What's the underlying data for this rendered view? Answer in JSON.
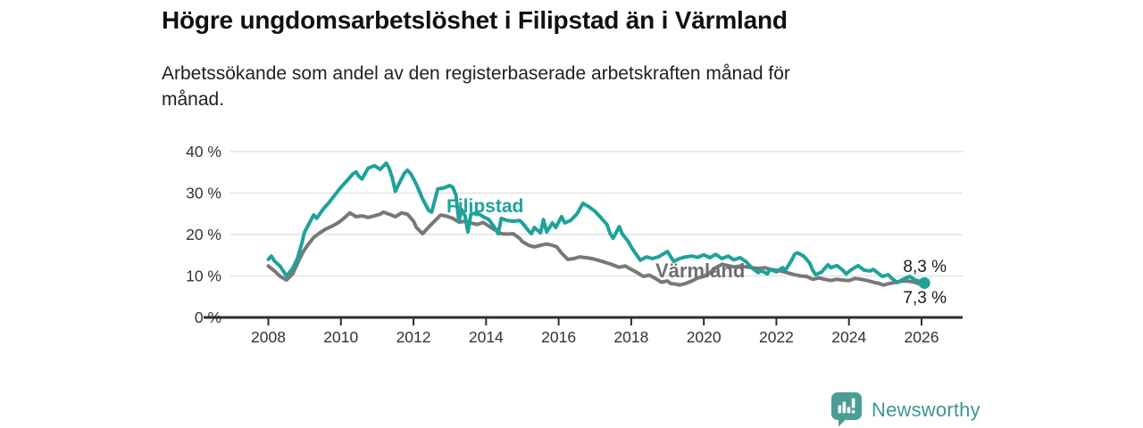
{
  "header": {
    "title": "Högre ungdomsarbetslöshet i Filipstad än i Värmland",
    "subtitle_lines": [
      "Arbetssökande som andel av den registerbaserade arbetskraften månad för",
      "månad."
    ]
  },
  "branding": {
    "logo_text": "Newsworthy",
    "logo_icon": "bar-chart-badge-icon",
    "brand_color": "#4c9d96"
  },
  "chart_data": {
    "type": "line",
    "title": "Högre ungdomsarbetslöshet i Filipstad än i Värmland",
    "subtitle": "Arbetssökande som andel av den registerbaserade arbetskraften månad för månad.",
    "unit": "%",
    "grid": "horizontal",
    "legend_position": "inline-labels",
    "xlim": [
      2006.2,
      2027.15
    ],
    "ylim": [
      0,
      43
    ],
    "x_ticks": [
      {
        "value": 2008,
        "label": "2008"
      },
      {
        "value": 2010,
        "label": "2010"
      },
      {
        "value": 2012,
        "label": "2012"
      },
      {
        "value": 2014,
        "label": "2014"
      },
      {
        "value": 2016,
        "label": "2016"
      },
      {
        "value": 2018,
        "label": "2018"
      },
      {
        "value": 2020,
        "label": "2020"
      },
      {
        "value": 2022,
        "label": "2022"
      },
      {
        "value": 2024,
        "label": "2024"
      },
      {
        "value": 2026,
        "label": "2026"
      }
    ],
    "y_ticks": [
      {
        "value": 0,
        "label": "0 %"
      },
      {
        "value": 10,
        "label": "10 %"
      },
      {
        "value": 20,
        "label": "20 %"
      },
      {
        "value": 30,
        "label": "30 %"
      },
      {
        "value": 40,
        "label": "40 %"
      }
    ],
    "series": [
      {
        "name": "Filipstad",
        "color": "#1ea29a",
        "end_label": "8,3 %",
        "end_value": 8.3,
        "end_dot": true,
        "points": [
          [
            2008.0,
            14.0
          ],
          [
            2008.08,
            14.8
          ],
          [
            2008.17,
            13.6
          ],
          [
            2008.33,
            12.3
          ],
          [
            2008.5,
            10.0
          ],
          [
            2008.67,
            11.8
          ],
          [
            2008.8,
            14.2
          ],
          [
            2008.92,
            17.8
          ],
          [
            2009.0,
            20.6
          ],
          [
            2009.17,
            23.4
          ],
          [
            2009.25,
            24.7
          ],
          [
            2009.33,
            23.9
          ],
          [
            2009.5,
            26.0
          ],
          [
            2009.67,
            27.7
          ],
          [
            2009.83,
            29.5
          ],
          [
            2010.0,
            31.4
          ],
          [
            2010.17,
            33.0
          ],
          [
            2010.33,
            34.6
          ],
          [
            2010.42,
            35.1
          ],
          [
            2010.5,
            34.0
          ],
          [
            2010.58,
            33.4
          ],
          [
            2010.75,
            36.0
          ],
          [
            2010.92,
            36.6
          ],
          [
            2011.0,
            36.2
          ],
          [
            2011.08,
            35.7
          ],
          [
            2011.25,
            37.2
          ],
          [
            2011.33,
            36.0
          ],
          [
            2011.42,
            33.5
          ],
          [
            2011.5,
            30.4
          ],
          [
            2011.58,
            31.9
          ],
          [
            2011.75,
            34.8
          ],
          [
            2011.83,
            35.5
          ],
          [
            2011.92,
            34.7
          ],
          [
            2012.08,
            32.1
          ],
          [
            2012.25,
            28.6
          ],
          [
            2012.42,
            25.8
          ],
          [
            2012.5,
            25.4
          ],
          [
            2012.58,
            28.0
          ],
          [
            2012.67,
            31.0
          ],
          [
            2012.83,
            31.2
          ],
          [
            2013.0,
            31.8
          ],
          [
            2013.08,
            31.4
          ],
          [
            2013.17,
            29.5
          ],
          [
            2013.25,
            23.2
          ],
          [
            2013.33,
            26.0
          ],
          [
            2013.42,
            24.5
          ],
          [
            2013.5,
            20.6
          ],
          [
            2013.58,
            24.9
          ],
          [
            2013.75,
            25.2
          ],
          [
            2013.92,
            24.3
          ],
          [
            2014.08,
            23.6
          ],
          [
            2014.25,
            21.5
          ],
          [
            2014.33,
            20.2
          ],
          [
            2014.42,
            23.9
          ],
          [
            2014.58,
            23.4
          ],
          [
            2014.75,
            23.2
          ],
          [
            2014.92,
            23.4
          ],
          [
            2015.0,
            22.8
          ],
          [
            2015.17,
            20.9
          ],
          [
            2015.25,
            20.2
          ],
          [
            2015.33,
            21.7
          ],
          [
            2015.5,
            20.4
          ],
          [
            2015.58,
            23.6
          ],
          [
            2015.67,
            20.6
          ],
          [
            2015.83,
            22.8
          ],
          [
            2015.92,
            21.7
          ],
          [
            2016.08,
            24.3
          ],
          [
            2016.17,
            22.8
          ],
          [
            2016.33,
            23.4
          ],
          [
            2016.5,
            24.9
          ],
          [
            2016.67,
            27.5
          ],
          [
            2016.83,
            26.7
          ],
          [
            2017.0,
            25.6
          ],
          [
            2017.17,
            24.0
          ],
          [
            2017.33,
            22.4
          ],
          [
            2017.42,
            20.2
          ],
          [
            2017.5,
            19.1
          ],
          [
            2017.67,
            21.9
          ],
          [
            2017.75,
            20.2
          ],
          [
            2017.92,
            18.3
          ],
          [
            2018.0,
            17.0
          ],
          [
            2018.08,
            15.9
          ],
          [
            2018.25,
            13.8
          ],
          [
            2018.42,
            14.6
          ],
          [
            2018.58,
            14.2
          ],
          [
            2018.75,
            14.6
          ],
          [
            2018.92,
            15.5
          ],
          [
            2019.0,
            15.9
          ],
          [
            2019.17,
            13.5
          ],
          [
            2019.33,
            14.2
          ],
          [
            2019.5,
            14.6
          ],
          [
            2019.67,
            14.8
          ],
          [
            2019.83,
            14.5
          ],
          [
            2020.0,
            15.1
          ],
          [
            2020.17,
            14.4
          ],
          [
            2020.33,
            15.2
          ],
          [
            2020.5,
            14.2
          ],
          [
            2020.67,
            14.8
          ],
          [
            2020.83,
            13.9
          ],
          [
            2021.0,
            14.4
          ],
          [
            2021.17,
            13.4
          ],
          [
            2021.33,
            11.9
          ],
          [
            2021.5,
            10.8
          ],
          [
            2021.58,
            11.3
          ],
          [
            2021.75,
            10.5
          ],
          [
            2021.83,
            11.6
          ],
          [
            2022.0,
            11.0
          ],
          [
            2022.17,
            12.0
          ],
          [
            2022.25,
            11.4
          ],
          [
            2022.42,
            13.8
          ],
          [
            2022.5,
            15.2
          ],
          [
            2022.58,
            15.6
          ],
          [
            2022.75,
            14.8
          ],
          [
            2022.92,
            13.1
          ],
          [
            2023.0,
            11.4
          ],
          [
            2023.08,
            10.3
          ],
          [
            2023.25,
            11.0
          ],
          [
            2023.42,
            12.7
          ],
          [
            2023.5,
            12.0
          ],
          [
            2023.67,
            12.5
          ],
          [
            2023.83,
            11.4
          ],
          [
            2023.92,
            10.5
          ],
          [
            2024.08,
            11.6
          ],
          [
            2024.25,
            12.5
          ],
          [
            2024.42,
            11.4
          ],
          [
            2024.58,
            11.2
          ],
          [
            2024.67,
            11.6
          ],
          [
            2024.83,
            10.5
          ],
          [
            2024.92,
            9.9
          ],
          [
            2025.08,
            10.3
          ],
          [
            2025.17,
            9.5
          ],
          [
            2025.33,
            8.4
          ],
          [
            2025.5,
            9.2
          ],
          [
            2025.67,
            9.9
          ],
          [
            2025.83,
            9.0
          ],
          [
            2026.0,
            8.6
          ],
          [
            2026.08,
            8.3
          ]
        ]
      },
      {
        "name": "Värmland",
        "color": "#787878",
        "end_label": "7,3 %",
        "end_value": 7.3,
        "end_dot": false,
        "points": [
          [
            2008.0,
            12.4
          ],
          [
            2008.17,
            11.2
          ],
          [
            2008.33,
            9.9
          ],
          [
            2008.5,
            9.0
          ],
          [
            2008.67,
            10.5
          ],
          [
            2008.83,
            13.5
          ],
          [
            2008.95,
            15.7
          ],
          [
            2009.08,
            17.4
          ],
          [
            2009.25,
            19.3
          ],
          [
            2009.42,
            20.4
          ],
          [
            2009.58,
            21.3
          ],
          [
            2009.75,
            22.0
          ],
          [
            2009.92,
            22.8
          ],
          [
            2010.08,
            23.9
          ],
          [
            2010.25,
            25.2
          ],
          [
            2010.42,
            24.3
          ],
          [
            2010.58,
            24.5
          ],
          [
            2010.75,
            24.1
          ],
          [
            2010.92,
            24.5
          ],
          [
            2011.08,
            24.9
          ],
          [
            2011.17,
            25.4
          ],
          [
            2011.33,
            24.9
          ],
          [
            2011.5,
            24.3
          ],
          [
            2011.67,
            25.2
          ],
          [
            2011.83,
            24.9
          ],
          [
            2012.0,
            23.2
          ],
          [
            2012.08,
            21.7
          ],
          [
            2012.25,
            20.2
          ],
          [
            2012.42,
            21.8
          ],
          [
            2012.58,
            23.2
          ],
          [
            2012.75,
            24.7
          ],
          [
            2012.92,
            24.4
          ],
          [
            2013.08,
            23.9
          ],
          [
            2013.25,
            23.0
          ],
          [
            2013.42,
            23.2
          ],
          [
            2013.58,
            22.8
          ],
          [
            2013.75,
            22.4
          ],
          [
            2013.92,
            22.9
          ],
          [
            2014.17,
            21.5
          ],
          [
            2014.42,
            20.2
          ],
          [
            2014.58,
            20.1
          ],
          [
            2014.75,
            20.2
          ],
          [
            2014.92,
            19.1
          ],
          [
            2015.0,
            18.3
          ],
          [
            2015.17,
            17.4
          ],
          [
            2015.33,
            17.0
          ],
          [
            2015.5,
            17.4
          ],
          [
            2015.67,
            17.7
          ],
          [
            2015.83,
            17.4
          ],
          [
            2015.95,
            17.0
          ],
          [
            2016.08,
            15.5
          ],
          [
            2016.25,
            14.0
          ],
          [
            2016.42,
            14.2
          ],
          [
            2016.58,
            14.6
          ],
          [
            2016.75,
            14.4
          ],
          [
            2016.92,
            14.2
          ],
          [
            2017.17,
            13.6
          ],
          [
            2017.42,
            12.9
          ],
          [
            2017.67,
            12.1
          ],
          [
            2017.83,
            12.4
          ],
          [
            2018.0,
            11.6
          ],
          [
            2018.17,
            10.8
          ],
          [
            2018.33,
            9.9
          ],
          [
            2018.5,
            10.2
          ],
          [
            2018.67,
            9.4
          ],
          [
            2018.83,
            8.5
          ],
          [
            2019.0,
            8.8
          ],
          [
            2019.08,
            8.2
          ],
          [
            2019.25,
            8.0
          ],
          [
            2019.33,
            7.8
          ],
          [
            2019.5,
            8.2
          ],
          [
            2019.67,
            8.8
          ],
          [
            2019.83,
            9.5
          ],
          [
            2020.0,
            9.9
          ],
          [
            2020.17,
            10.8
          ],
          [
            2020.33,
            12.0
          ],
          [
            2020.5,
            12.8
          ],
          [
            2020.67,
            12.5
          ],
          [
            2020.83,
            12.2
          ],
          [
            2021.0,
            12.4
          ],
          [
            2021.17,
            12.2
          ],
          [
            2021.33,
            12.0
          ],
          [
            2021.5,
            11.8
          ],
          [
            2021.67,
            12.0
          ],
          [
            2021.83,
            11.6
          ],
          [
            2022.0,
            11.4
          ],
          [
            2022.17,
            11.1
          ],
          [
            2022.33,
            10.7
          ],
          [
            2022.5,
            10.3
          ],
          [
            2022.67,
            10.0
          ],
          [
            2022.83,
            9.9
          ],
          [
            2023.0,
            9.2
          ],
          [
            2023.17,
            9.5
          ],
          [
            2023.33,
            9.2
          ],
          [
            2023.5,
            8.9
          ],
          [
            2023.67,
            9.2
          ],
          [
            2023.83,
            9.0
          ],
          [
            2024.0,
            8.9
          ],
          [
            2024.17,
            9.4
          ],
          [
            2024.33,
            9.2
          ],
          [
            2024.5,
            8.9
          ],
          [
            2024.67,
            8.5
          ],
          [
            2024.83,
            8.2
          ],
          [
            2024.95,
            7.8
          ],
          [
            2025.08,
            8.1
          ],
          [
            2025.25,
            8.4
          ],
          [
            2025.42,
            8.7
          ],
          [
            2025.58,
            8.8
          ],
          [
            2025.75,
            8.6
          ],
          [
            2025.92,
            8.2
          ],
          [
            2026.0,
            7.8
          ],
          [
            2026.08,
            7.3
          ]
        ]
      }
    ]
  }
}
